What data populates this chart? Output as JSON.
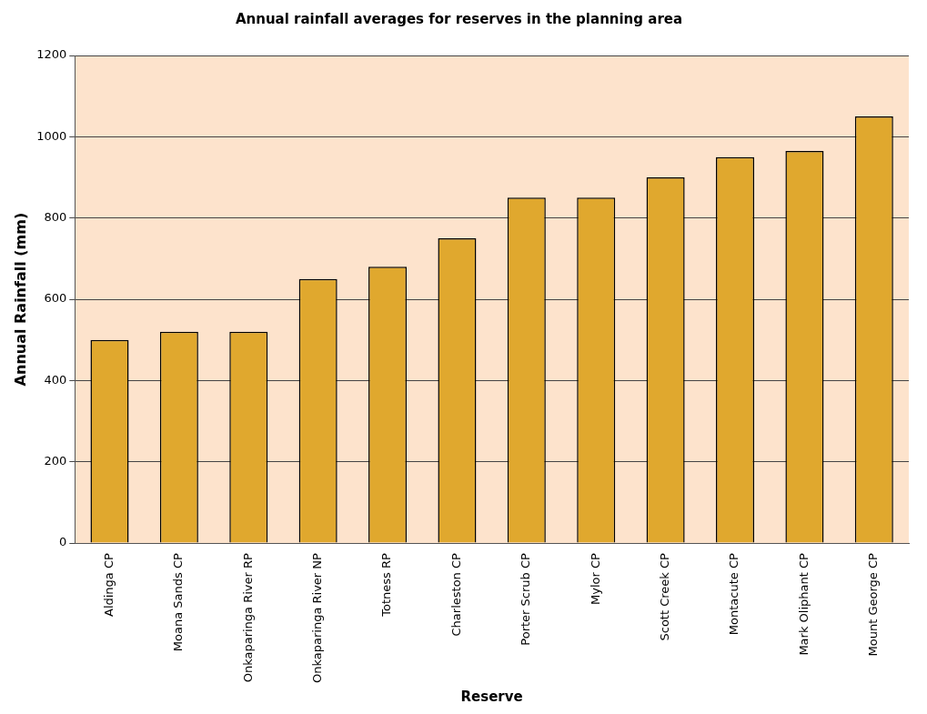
{
  "chart_data": {
    "type": "bar",
    "title": "Annual rainfall averages for reserves in the planning area",
    "xlabel": "Reserve",
    "ylabel": "Annual Rainfall (mm)",
    "categories": [
      "Aldinga CP",
      "Moana Sands CP",
      "Onkaparinga River RP",
      "Onkaparinga River NP",
      "Totness RP",
      "Charleston CP",
      "Porter Scrub CP",
      "Mylor CP",
      "Scott Creek CP",
      "Montacute CP",
      "Mark Oliphant CP",
      "Mount George CP"
    ],
    "values": [
      500,
      520,
      520,
      650,
      680,
      750,
      850,
      850,
      900,
      950,
      965,
      1050
    ],
    "color": "#e0a82e",
    "ylim": [
      0,
      1200
    ],
    "yticks": [
      0,
      200,
      400,
      600,
      800,
      1000,
      1200
    ],
    "grid": "y",
    "legend": false
  }
}
